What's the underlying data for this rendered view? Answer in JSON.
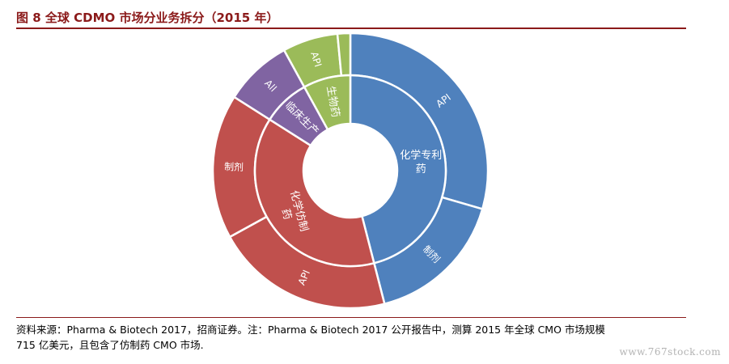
{
  "figure": {
    "title": "图 8 全球 CDMO 市场分业务拆分（2015 年）"
  },
  "chart_data": {
    "type": "sunburst",
    "title": "图 8 全球 CDMO 市场分业务拆分（2015 年）",
    "inner_ring": [
      {
        "label": "化学专利药",
        "value": 46,
        "color": "#4F81BD"
      },
      {
        "label": "化学仿制药",
        "value": 38,
        "color": "#C0504D"
      },
      {
        "label": "临床生产",
        "value": 8,
        "color": "#8064A2"
      },
      {
        "label": "生物药",
        "value": 8,
        "color": "#9BBB59"
      }
    ],
    "outer_ring": [
      {
        "label": "API",
        "parent": "化学专利药",
        "value": 29.5,
        "color": "#4F81BD"
      },
      {
        "label": "制剂",
        "parent": "化学专利药",
        "value": 16.5,
        "color": "#4F81BD"
      },
      {
        "label": "API",
        "parent": "化学仿制药",
        "value": 21,
        "color": "#C0504D"
      },
      {
        "label": "制剂",
        "parent": "化学仿制药",
        "value": 17,
        "color": "#C0504D"
      },
      {
        "label": "All",
        "parent": "临床生产",
        "value": 8,
        "color": "#8064A2"
      },
      {
        "label": "API",
        "parent": "生物药",
        "value": 6.5,
        "color": "#9BBB59"
      },
      {
        "label": "",
        "parent": "生物药",
        "value": 1.5,
        "color": "#9BBB59"
      }
    ]
  },
  "source_note": {
    "line1": "资料来源：Pharma & Biotech 2017，招商证券。注：Pharma & Biotech 2017 公开报告中，测算 2015 年全球 CMO 市场规模",
    "line2": "715 亿美元，且包含了仿制药 CMO 市场."
  },
  "watermark": "www.767stock.com",
  "colors": {
    "title": "#8B1A1A",
    "rule": "#8B1A1A"
  }
}
